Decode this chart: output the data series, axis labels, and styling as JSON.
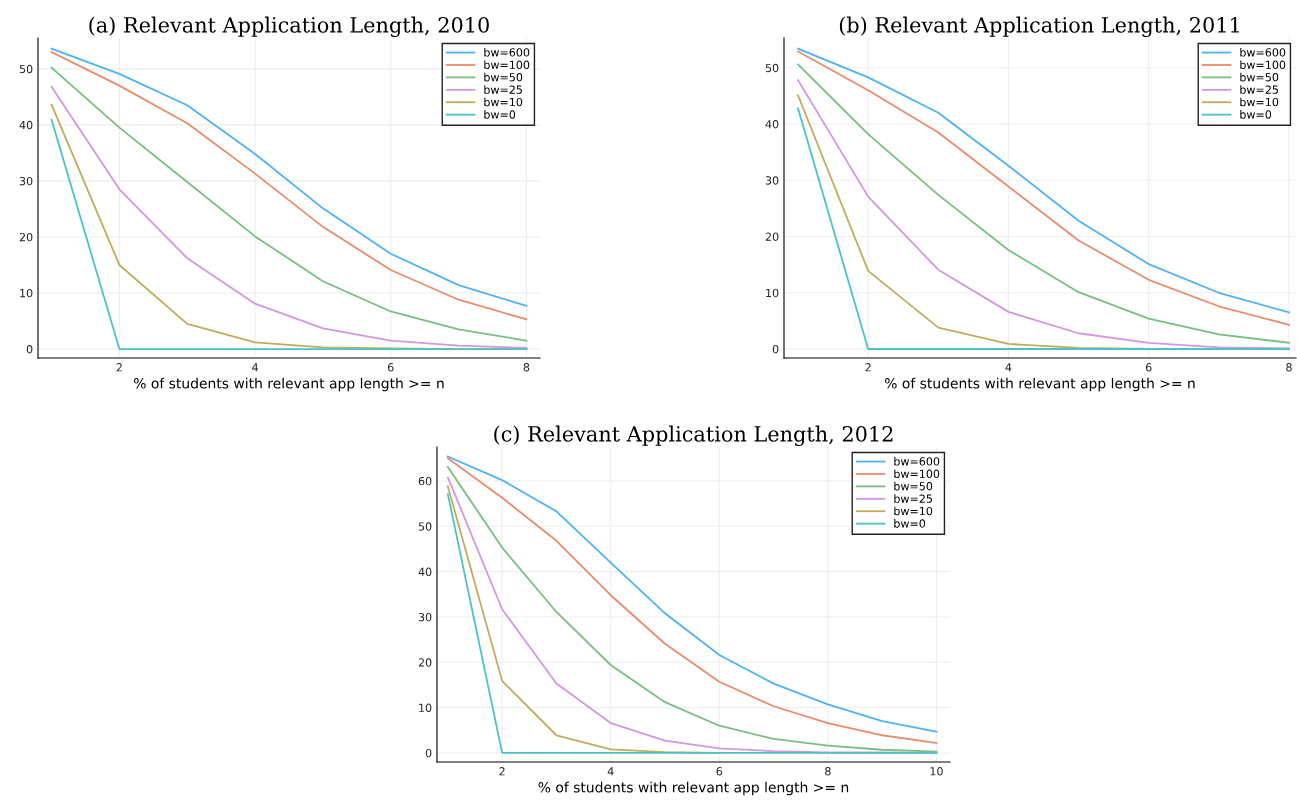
{
  "chart_data": [
    {
      "type": "line",
      "title": "(a) Relevant Application Length, 2010",
      "xlabel": "% of students with relevant app length >= n",
      "x": [
        1,
        2,
        3,
        4,
        5,
        6,
        7,
        8
      ],
      "xlim": [
        0.8,
        8.2
      ],
      "xticks": [
        2,
        4,
        6,
        8
      ],
      "ylim": [
        -1.6,
        55.5
      ],
      "yticks": [
        0,
        10,
        20,
        30,
        40,
        50
      ],
      "grid": true,
      "legend": "top right",
      "series": [
        {
          "name": "bw=600",
          "color": "#4db3f7",
          "values": [
            53.6,
            49.1,
            43.5,
            34.8,
            25.1,
            17.0,
            11.4,
            7.7
          ]
        },
        {
          "name": "bw=100",
          "color": "#e98c6c",
          "values": [
            53.0,
            47.0,
            40.3,
            31.3,
            21.8,
            14.1,
            8.8,
            5.3
          ]
        },
        {
          "name": "bw=50",
          "color": "#78bf80",
          "values": [
            50.2,
            39.5,
            29.8,
            20.1,
            12.1,
            6.7,
            3.5,
            1.5
          ]
        },
        {
          "name": "bw=25",
          "color": "#d596e0",
          "values": [
            46.8,
            28.5,
            16.2,
            8.1,
            3.7,
            1.5,
            0.6,
            0.2
          ]
        },
        {
          "name": "bw=10",
          "color": "#c1ab5c",
          "values": [
            43.6,
            15.0,
            4.5,
            1.2,
            0.3,
            0.1,
            0,
            0
          ]
        },
        {
          "name": "bw=0",
          "color": "#4cc3c6",
          "values": [
            40.9,
            0,
            0,
            0,
            0,
            0,
            0,
            0
          ]
        }
      ]
    },
    {
      "type": "line",
      "title": "(b) Relevant Application Length, 2011",
      "xlabel": "% of students with relevant app length >= n",
      "x": [
        1,
        2,
        3,
        4,
        5,
        6,
        7,
        8
      ],
      "xlim": [
        0.8,
        8.1
      ],
      "xticks": [
        2,
        4,
        6,
        8
      ],
      "ylim": [
        -1.6,
        55.3
      ],
      "yticks": [
        0,
        10,
        20,
        30,
        40,
        50
      ],
      "grid": true,
      "legend": "top right",
      "series": [
        {
          "name": "bw=600",
          "color": "#4db3f7",
          "values": [
            53.4,
            48.3,
            42.0,
            32.6,
            22.8,
            15.1,
            10.0,
            6.5
          ]
        },
        {
          "name": "bw=100",
          "color": "#e98c6c",
          "values": [
            52.9,
            46.0,
            38.5,
            28.9,
            19.3,
            12.3,
            7.6,
            4.3
          ]
        },
        {
          "name": "bw=50",
          "color": "#78bf80",
          "values": [
            50.6,
            38.2,
            27.4,
            17.6,
            10.1,
            5.4,
            2.6,
            1.1
          ]
        },
        {
          "name": "bw=25",
          "color": "#d596e0",
          "values": [
            47.8,
            27.1,
            14.1,
            6.6,
            2.8,
            1.1,
            0.3,
            0.1
          ]
        },
        {
          "name": "bw=10",
          "color": "#c1ab5c",
          "values": [
            45.1,
            13.9,
            3.8,
            0.9,
            0.2,
            0,
            0,
            0
          ]
        },
        {
          "name": "bw=0",
          "color": "#4cc3c6",
          "values": [
            42.8,
            0,
            0,
            0,
            0,
            0,
            0,
            0
          ]
        }
      ]
    },
    {
      "type": "line",
      "title": "(c) Relevant Application Length, 2012",
      "xlabel": "% of students with relevant app length >= n",
      "x": [
        1,
        2,
        3,
        4,
        5,
        6,
        7,
        8,
        9,
        10
      ],
      "xlim": [
        0.8,
        10.25
      ],
      "xticks": [
        2,
        4,
        6,
        8,
        10
      ],
      "ylim": [
        -2,
        67.5
      ],
      "yticks": [
        0,
        10,
        20,
        30,
        40,
        50,
        60
      ],
      "grid": true,
      "legend": "top right",
      "series": [
        {
          "name": "bw=600",
          "color": "#4db3f7",
          "values": [
            65.4,
            60.2,
            53.3,
            42.0,
            30.8,
            21.6,
            15.3,
            10.7,
            7.0,
            4.7
          ]
        },
        {
          "name": "bw=100",
          "color": "#e98c6c",
          "values": [
            65.0,
            56.3,
            46.8,
            34.8,
            24.1,
            15.7,
            10.3,
            6.6,
            3.9,
            2.2
          ]
        },
        {
          "name": "bw=50",
          "color": "#78bf80",
          "values": [
            63.1,
            45.3,
            31.1,
            19.4,
            11.2,
            6.0,
            3.1,
            1.6,
            0.7,
            0.3
          ]
        },
        {
          "name": "bw=25",
          "color": "#d596e0",
          "values": [
            60.8,
            31.7,
            15.3,
            6.6,
            2.7,
            1.0,
            0.4,
            0.1,
            0.1,
            0
          ]
        },
        {
          "name": "bw=10",
          "color": "#c1ab5c",
          "values": [
            58.8,
            15.9,
            3.9,
            0.8,
            0.2,
            0,
            null,
            null,
            null,
            null
          ]
        },
        {
          "name": "bw=0",
          "color": "#4cc3c6",
          "values": [
            57.1,
            0,
            0,
            0,
            0,
            0,
            0,
            0,
            0,
            0
          ]
        }
      ]
    }
  ]
}
